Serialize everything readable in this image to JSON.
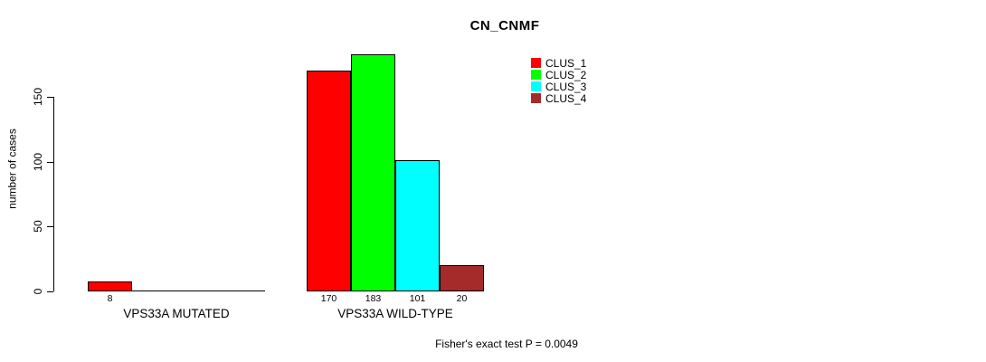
{
  "chart_data": {
    "type": "bar",
    "title": "CN_CNMF",
    "ylabel": "number of cases",
    "xlabel": "",
    "categories": [
      "VPS33A MUTATED",
      "VPS33A WILD-TYPE"
    ],
    "series": [
      {
        "name": "CLUS_1",
        "color": "#ff0000",
        "values": [
          8,
          170
        ]
      },
      {
        "name": "CLUS_2",
        "color": "#00ff00",
        "values": [
          0,
          183
        ]
      },
      {
        "name": "CLUS_3",
        "color": "#00ffff",
        "values": [
          0,
          101
        ]
      },
      {
        "name": "CLUS_4",
        "color": "#a52a2a",
        "values": [
          0,
          20
        ]
      }
    ],
    "yticks": [
      0,
      50,
      100,
      150
    ],
    "ylim": [
      0,
      190
    ],
    "grid": false,
    "bar_value_labels": true,
    "legend_position": "top-right",
    "axis_color": "#000000",
    "annotation": "Fisher's exact test P = 0.0049"
  }
}
